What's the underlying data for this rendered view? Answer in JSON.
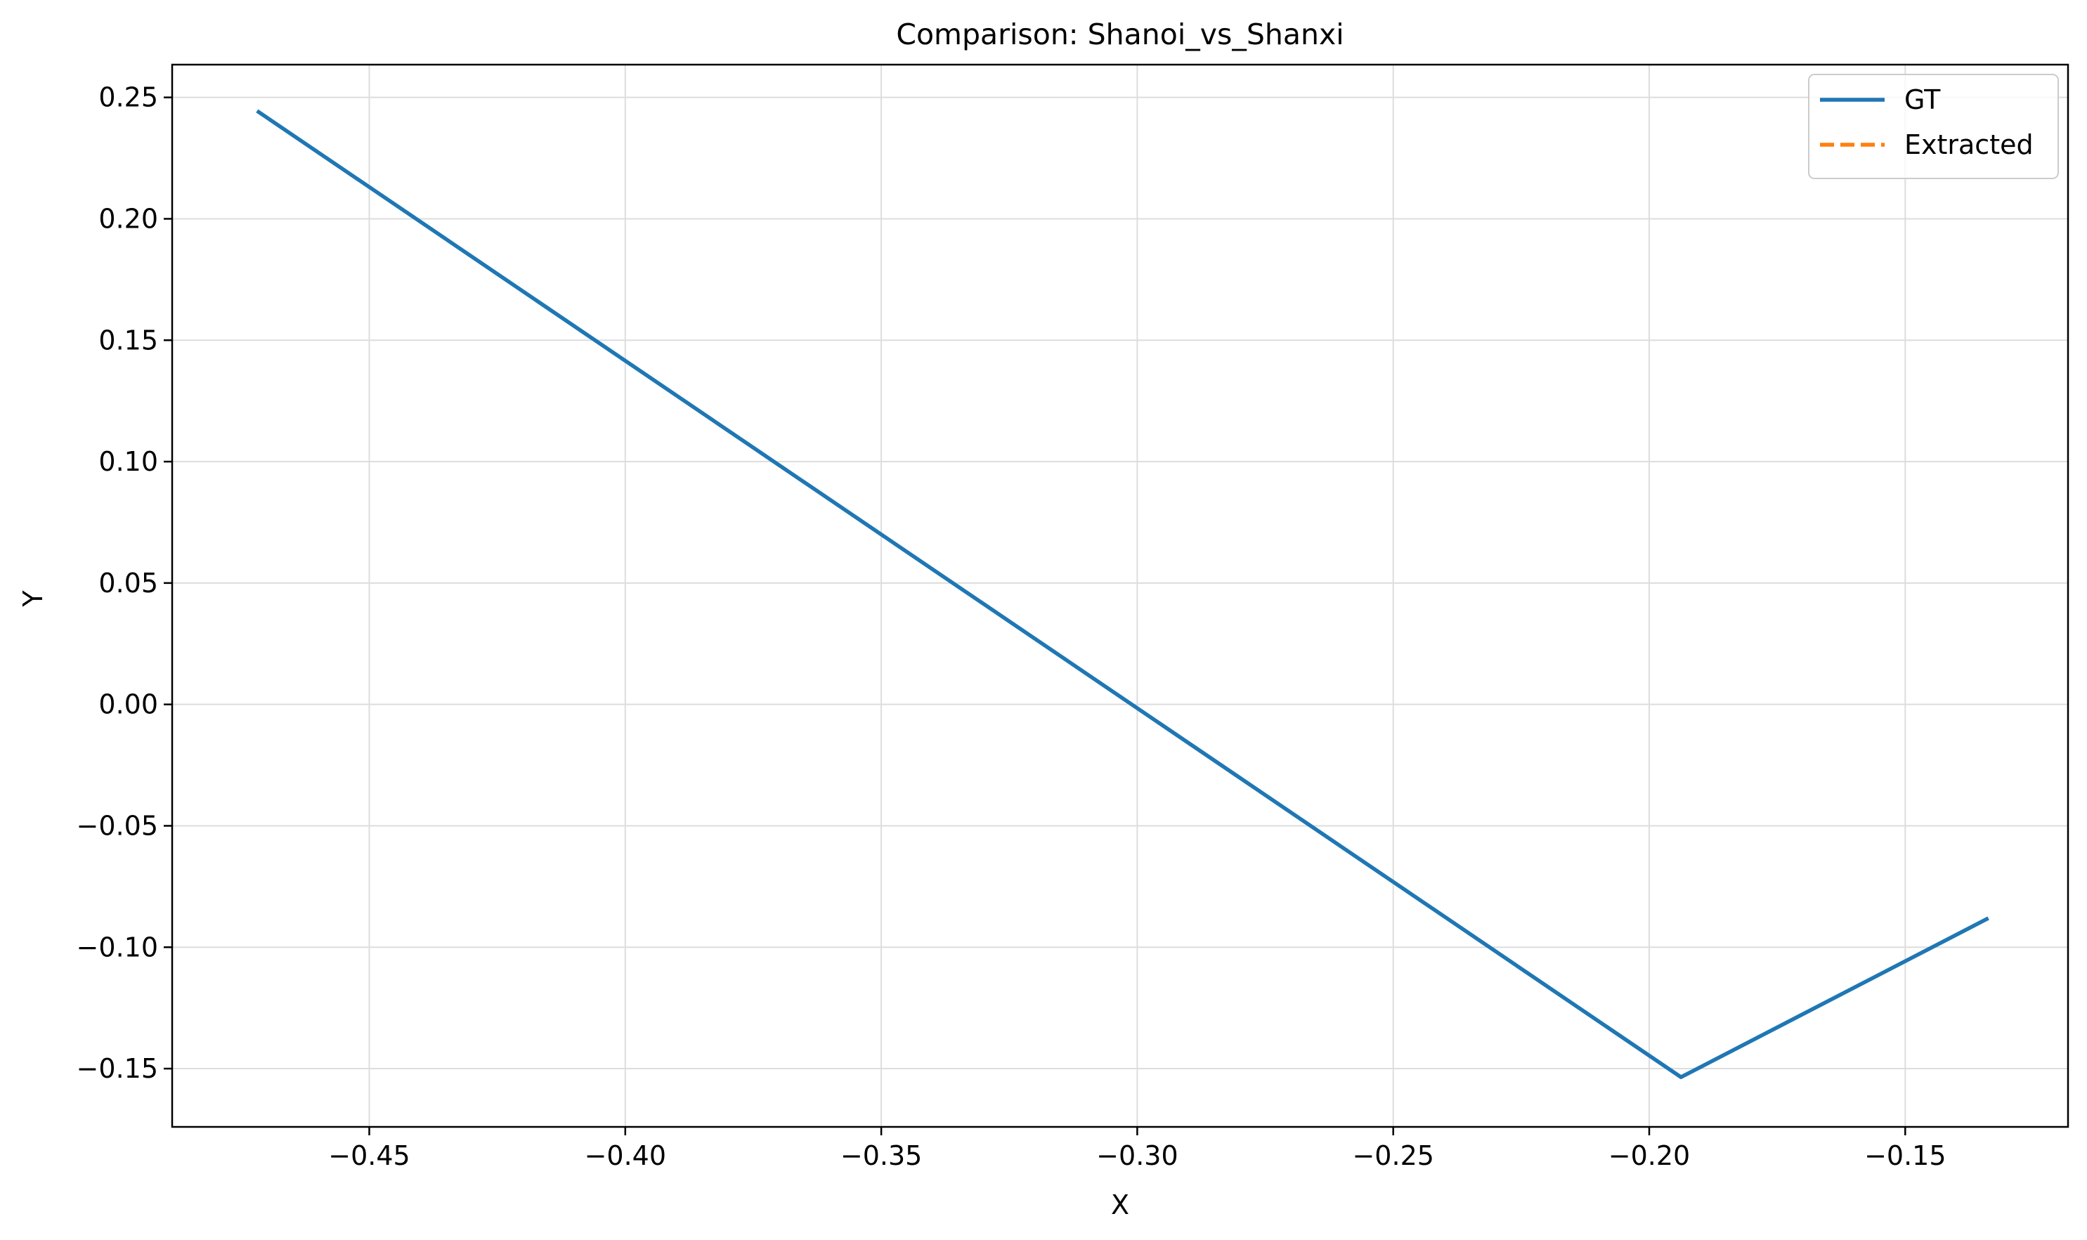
{
  "chart_data": {
    "type": "line",
    "title": "Comparison: Shanoi_vs_Shanxi",
    "xlabel": "X",
    "ylabel": "Y",
    "xlim": [
      -0.4885,
      -0.1182
    ],
    "ylim": [
      -0.174,
      0.2635
    ],
    "xticks": [
      {
        "value": -0.45,
        "label": "−0.45"
      },
      {
        "value": -0.4,
        "label": "−0.40"
      },
      {
        "value": -0.35,
        "label": "−0.35"
      },
      {
        "value": -0.3,
        "label": "−0.30"
      },
      {
        "value": -0.25,
        "label": "−0.25"
      },
      {
        "value": -0.2,
        "label": "−0.20"
      },
      {
        "value": -0.15,
        "label": "−0.15"
      }
    ],
    "yticks": [
      {
        "value": 0.25,
        "label": "0.25"
      },
      {
        "value": 0.2,
        "label": "0.20"
      },
      {
        "value": 0.15,
        "label": "0.15"
      },
      {
        "value": 0.1,
        "label": "0.10"
      },
      {
        "value": 0.05,
        "label": "0.05"
      },
      {
        "value": 0.0,
        "label": "0.00"
      },
      {
        "value": -0.05,
        "label": "−0.05"
      },
      {
        "value": -0.1,
        "label": "−0.10"
      },
      {
        "value": -0.15,
        "label": "−0.15"
      }
    ],
    "grid": true,
    "legend_position": "top-right",
    "series": [
      {
        "name": "GT",
        "color": "#1f77b4",
        "dash": "solid",
        "x": [
          -0.4716,
          -0.1938,
          -0.1341
        ],
        "y": [
          0.244,
          -0.1535,
          -0.0884
        ]
      },
      {
        "name": "Extracted",
        "color": "#ff7f0e",
        "dash": "dashed",
        "x": [],
        "y": []
      }
    ]
  }
}
